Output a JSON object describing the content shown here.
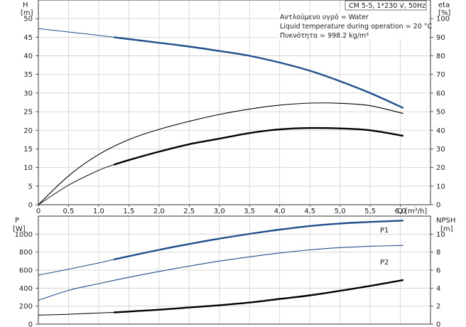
{
  "chart_data": [
    {
      "type": "line",
      "title": "CM 5-5, 1*230 V, 50Hz",
      "annotations": [
        "Αντλούμενο υγρό = Water",
        "Liquid temperature during operation = 20 °C",
        "Πυκνότητα = 998.2 kg/m³"
      ],
      "xlabel": "Q [m³/h]",
      "xlim": [
        0,
        6.5
      ],
      "x_ticks": [
        "0",
        "0,5",
        "1,0",
        "1,5",
        "2,0",
        "2,5",
        "3,0",
        "3,5",
        "4,0",
        "4,5",
        "5,0",
        "5,5",
        "6,0"
      ],
      "ylabel_left": [
        "H",
        "[m]"
      ],
      "ylim_left": [
        0,
        55
      ],
      "y_ticks_left": [
        "0",
        "5",
        "10",
        "15",
        "20",
        "25",
        "30",
        "35",
        "40",
        "45",
        "50"
      ],
      "ylabel_right": [
        "eta",
        "[%]"
      ],
      "ylim_right": [
        0,
        110
      ],
      "y_ticks_right": [
        "0",
        "10",
        "20",
        "30",
        "40",
        "50",
        "60",
        "70",
        "80",
        "90",
        "100"
      ],
      "grid": true,
      "series": [
        {
          "axis": "left",
          "color": "#1f4e8c",
          "x": [
            0,
            0.5,
            1.0,
            1.25,
            1.5,
            2.0,
            2.5,
            3.0,
            3.5,
            4.0,
            4.5,
            5.0,
            5.5,
            6.05
          ],
          "y": [
            47.3,
            46.4,
            45.5,
            45.0,
            44.5,
            43.5,
            42.5,
            41.3,
            40.0,
            38.2,
            36.0,
            33.2,
            30.0,
            26.0
          ],
          "highlight_from": 1.25
        },
        {
          "axis": "right",
          "color": "#000000",
          "x": [
            0,
            0.5,
            1.0,
            1.5,
            2.0,
            2.5,
            3.0,
            3.5,
            4.0,
            4.5,
            5.0,
            5.5,
            6.05
          ],
          "y": [
            0,
            15.5,
            27.0,
            35.0,
            40.5,
            44.8,
            48.5,
            51.4,
            53.5,
            54.6,
            54.5,
            53.2,
            49.0
          ]
        },
        {
          "axis": "right",
          "color": "#000000",
          "x": [
            0,
            0.5,
            1.0,
            1.25,
            1.5,
            2.0,
            2.5,
            3.0,
            3.5,
            4.0,
            4.5,
            5.0,
            5.5,
            6.05
          ],
          "y": [
            0,
            10.5,
            18.5,
            21.5,
            24.0,
            28.5,
            32.5,
            35.5,
            38.5,
            40.5,
            41.2,
            41.0,
            40.0,
            37.0
          ],
          "highlight_from": 1.25
        }
      ]
    },
    {
      "type": "line",
      "xlim": [
        0,
        6.5
      ],
      "ylabel_left": [
        "P",
        "[W]"
      ],
      "ylim_left": [
        0,
        1200
      ],
      "y_ticks_left": [
        "0",
        "200",
        "400",
        "600",
        "800",
        "1000"
      ],
      "ylabel_right": [
        "NPSH",
        "[m]"
      ],
      "ylim_right": [
        0,
        12
      ],
      "y_ticks_right": [
        "0",
        "2",
        "4",
        "6",
        "8",
        "10"
      ],
      "grid": true,
      "series": [
        {
          "name": "P1",
          "axis": "left",
          "color": "#1f4e8c",
          "x": [
            0,
            0.5,
            1.0,
            1.25,
            1.5,
            2.0,
            2.5,
            3.0,
            3.5,
            4.0,
            4.5,
            5.0,
            5.5,
            6.05
          ],
          "y": [
            545,
            610,
            680,
            718,
            755,
            825,
            890,
            950,
            1003,
            1050,
            1090,
            1118,
            1135,
            1150
          ],
          "highlight_from": 1.25
        },
        {
          "name": "P2",
          "axis": "left",
          "color": "#1f4e8c",
          "x": [
            0,
            0.5,
            1.0,
            1.5,
            2.0,
            2.5,
            3.0,
            3.5,
            4.0,
            4.5,
            5.0,
            5.5,
            6.05
          ],
          "y": [
            265,
            375,
            450,
            520,
            585,
            645,
            700,
            748,
            790,
            825,
            850,
            865,
            875
          ]
        },
        {
          "axis": "right",
          "color": "#000000",
          "x": [
            0,
            0.5,
            1.0,
            1.25,
            1.5,
            2.0,
            2.5,
            3.0,
            3.5,
            4.0,
            4.5,
            5.0,
            5.5,
            6.05
          ],
          "y": [
            1.0,
            1.1,
            1.25,
            1.3,
            1.4,
            1.6,
            1.85,
            2.1,
            2.4,
            2.8,
            3.2,
            3.7,
            4.25,
            4.9
          ],
          "highlight_from": 1.25
        }
      ]
    }
  ]
}
